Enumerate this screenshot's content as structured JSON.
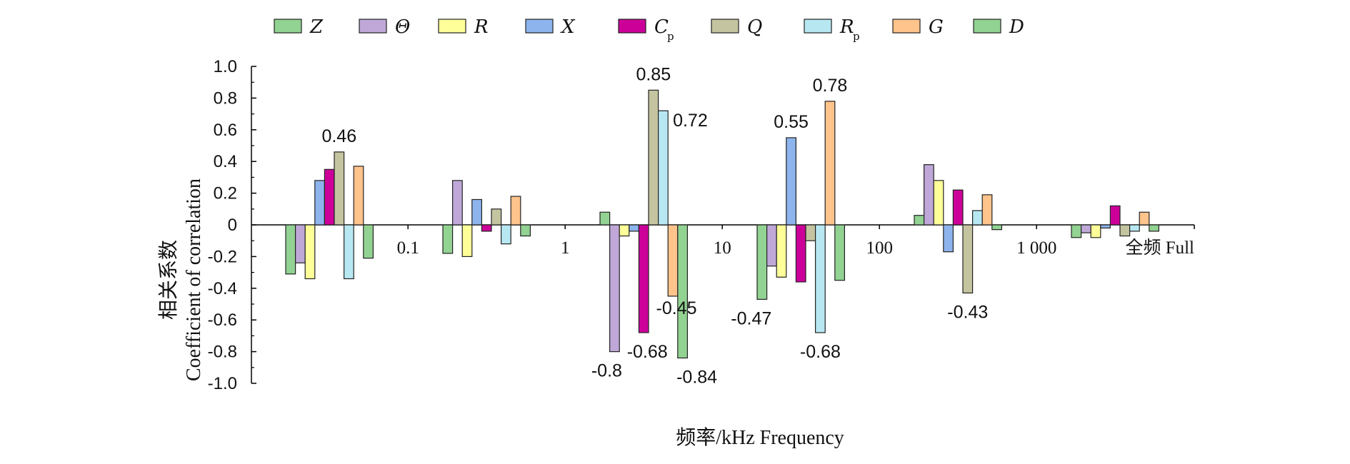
{
  "chart_data": {
    "type": "bar",
    "categories": [
      "0.1",
      "1",
      "10",
      "100",
      "1 000",
      "全频 Full"
    ],
    "xlabel": "频率/kHz Frequency",
    "ylabel_cn": "相关系数",
    "ylabel_en": "Coefficient of correlation",
    "ylim": [
      -1.0,
      1.0
    ],
    "yticks": [
      "1.0",
      "0.8",
      "0.6",
      "0.4",
      "0.2",
      "0",
      "-0.2",
      "-0.4",
      "-0.6",
      "-0.8",
      "-1.0"
    ],
    "grid": false,
    "legend_position": "top",
    "series": [
      {
        "name": "Z",
        "sub": "",
        "color": "#92d292",
        "values": [
          -0.31,
          -0.18,
          0.08,
          -0.47,
          0.06,
          -0.08
        ]
      },
      {
        "name": "Θ",
        "sub": "",
        "color": "#bfa8d8",
        "values": [
          -0.24,
          0.28,
          -0.8,
          -0.26,
          0.38,
          -0.05
        ]
      },
      {
        "name": "R",
        "sub": "",
        "color": "#ffff99",
        "values": [
          -0.34,
          -0.2,
          -0.07,
          -0.33,
          0.28,
          -0.08
        ]
      },
      {
        "name": "X",
        "sub": "",
        "color": "#8db4ec",
        "values": [
          0.28,
          0.16,
          -0.04,
          0.55,
          -0.17,
          -0.02
        ]
      },
      {
        "name": "C",
        "sub": "p",
        "color": "#cc0099",
        "values": [
          0.35,
          -0.04,
          -0.68,
          -0.36,
          0.22,
          0.12
        ]
      },
      {
        "name": "Q",
        "sub": "",
        "color": "#c4c4a0",
        "values": [
          0.46,
          0.1,
          0.85,
          -0.1,
          -0.43,
          -0.07
        ]
      },
      {
        "name": "R",
        "sub": "p",
        "color": "#b7e8f2",
        "values": [
          -0.34,
          -0.12,
          0.72,
          -0.68,
          0.09,
          -0.04
        ]
      },
      {
        "name": "G",
        "sub": "",
        "color": "#ffc38c",
        "values": [
          0.37,
          0.18,
          -0.45,
          0.78,
          0.19,
          0.08
        ]
      },
      {
        "name": "D",
        "sub": "",
        "color": "#92d292",
        "values": [
          -0.21,
          -0.07,
          -0.84,
          -0.35,
          -0.03,
          -0.04
        ]
      }
    ],
    "data_labels": [
      {
        "group": 0,
        "series": 5,
        "text": "0.46"
      },
      {
        "group": 2,
        "series": 1,
        "text": "-0.8"
      },
      {
        "group": 2,
        "series": 4,
        "text": "-0.68"
      },
      {
        "group": 2,
        "series": 5,
        "text": "0.85"
      },
      {
        "group": 2,
        "series": 6,
        "text": "0.72"
      },
      {
        "group": 2,
        "series": 7,
        "text": "-0.45"
      },
      {
        "group": 2,
        "series": 8,
        "text": "-0.84"
      },
      {
        "group": 3,
        "series": 0,
        "text": "-0.47"
      },
      {
        "group": 3,
        "series": 3,
        "text": "0.55"
      },
      {
        "group": 3,
        "series": 6,
        "text": "-0.68"
      },
      {
        "group": 3,
        "series": 7,
        "text": "0.78"
      },
      {
        "group": 4,
        "series": 5,
        "text": "-0.43"
      }
    ]
  }
}
